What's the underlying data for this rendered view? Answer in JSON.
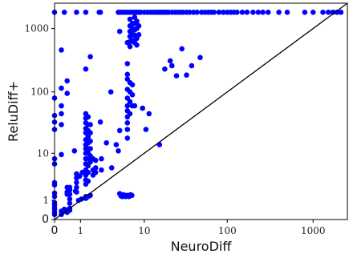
{
  "chart_data": {
    "type": "scatter",
    "title": "",
    "xlabel": "NeuroDiff",
    "ylabel": "ReluDiff+",
    "scale": "symlog",
    "xlim": [
      0,
      2500
    ],
    "ylim": [
      0,
      2500
    ],
    "x_ticks": [
      {
        "value": 0,
        "label": "0"
      },
      {
        "value": 1,
        "label": "1"
      },
      {
        "value": 10,
        "label": "10"
      },
      {
        "value": 100,
        "label": "100"
      },
      {
        "value": 1000,
        "label": "1000"
      }
    ],
    "y_ticks": [
      {
        "value": 0,
        "label": "0"
      },
      {
        "value": 1,
        "label": "1"
      },
      {
        "value": 10,
        "label": "10"
      },
      {
        "value": 100,
        "label": "100"
      },
      {
        "value": 1000,
        "label": "1000"
      }
    ],
    "grid": false,
    "reference_line": "y = x",
    "colors": {
      "points": "#0000ff",
      "line": "#000000",
      "axes": "#000000"
    },
    "series": [
      {
        "points": [
          [
            0,
            1800
          ],
          [
            0.3,
            1800
          ],
          [
            0.8,
            1800
          ],
          [
            1.3,
            1800
          ],
          [
            2.3,
            1800
          ],
          [
            2.4,
            1800
          ],
          [
            4.5,
            1800
          ],
          [
            4.8,
            1800
          ],
          [
            5.2,
            1800
          ],
          [
            5.6,
            1800
          ],
          [
            6,
            1800
          ],
          [
            6.5,
            1800
          ],
          [
            7,
            1800
          ],
          [
            7.5,
            1800
          ],
          [
            8,
            1800
          ],
          [
            8.5,
            1800
          ],
          [
            9,
            1800
          ],
          [
            10,
            1800
          ],
          [
            11,
            1800
          ],
          [
            12,
            1800
          ],
          [
            13,
            1800
          ],
          [
            14,
            1800
          ],
          [
            15,
            1800
          ],
          [
            16,
            1800
          ],
          [
            17,
            1800
          ],
          [
            18,
            1800
          ],
          [
            19,
            1800
          ],
          [
            20,
            1800
          ],
          [
            22,
            1800
          ],
          [
            24,
            1800
          ],
          [
            26,
            1800
          ],
          [
            28,
            1800
          ],
          [
            30,
            1800
          ],
          [
            33,
            1800
          ],
          [
            36,
            1800
          ],
          [
            40,
            1800
          ],
          [
            44,
            1800
          ],
          [
            50,
            1800
          ],
          [
            55,
            1800
          ],
          [
            60,
            1800
          ],
          [
            65,
            1800
          ],
          [
            70,
            1800
          ],
          [
            80,
            1800
          ],
          [
            90,
            1800
          ],
          [
            100,
            1800
          ],
          [
            110,
            1800
          ],
          [
            120,
            1800
          ],
          [
            130,
            1800
          ],
          [
            150,
            1800
          ],
          [
            170,
            1800
          ],
          [
            200,
            1800
          ],
          [
            230,
            1800
          ],
          [
            260,
            1800
          ],
          [
            300,
            1800
          ],
          [
            400,
            1800
          ],
          [
            500,
            1800
          ],
          [
            800,
            1800
          ],
          [
            1000,
            1800
          ],
          [
            1300,
            1800
          ],
          [
            1500,
            1800
          ],
          [
            1700,
            1800
          ],
          [
            1900,
            1800
          ],
          [
            2100,
            1800
          ],
          [
            0,
            80
          ],
          [
            0,
            42
          ],
          [
            0,
            33
          ],
          [
            0,
            25
          ],
          [
            0,
            8
          ],
          [
            0,
            6.5
          ],
          [
            0,
            2.8
          ],
          [
            0,
            2.5
          ],
          [
            0,
            1.6
          ],
          [
            0,
            1.3
          ],
          [
            0,
            0.85
          ],
          [
            0,
            0.7
          ],
          [
            0,
            0.55
          ],
          [
            0,
            0.45
          ],
          [
            0,
            0.3
          ],
          [
            0,
            0.2
          ],
          [
            0.2,
            460
          ],
          [
            0.2,
            115
          ],
          [
            0.2,
            60
          ],
          [
            0.2,
            45
          ],
          [
            0.2,
            30
          ],
          [
            0.2,
            9.5
          ],
          [
            0.2,
            0.35
          ],
          [
            0.2,
            0.2
          ],
          [
            0.3,
            0.45
          ],
          [
            0.3,
            0.35
          ],
          [
            0.4,
            150
          ],
          [
            0.4,
            95
          ],
          [
            0.4,
            2.2
          ],
          [
            0.4,
            1.7
          ],
          [
            0.4,
            1.5
          ],
          [
            0.4,
            0.4
          ],
          [
            0.4,
            0.3
          ],
          [
            0.5,
            2.2
          ],
          [
            0.5,
            1.9
          ],
          [
            0.5,
            1.5
          ],
          [
            0.5,
            1.1
          ],
          [
            0.5,
            0.8
          ],
          [
            0.5,
            0.5
          ],
          [
            0.5,
            0.4
          ],
          [
            0.75,
            1.8
          ],
          [
            0.7,
            11
          ],
          [
            0.8,
            4.2
          ],
          [
            0.8,
            3.5
          ],
          [
            0.8,
            2.8
          ],
          [
            0.8,
            2.2
          ],
          [
            0.8,
            1.7
          ],
          [
            0.9,
            1.0
          ],
          [
            0.95,
            3.8
          ],
          [
            1.05,
            1.1
          ],
          [
            1.1,
            4.5
          ],
          [
            1.3,
            230
          ],
          [
            1.3,
            45
          ],
          [
            1.3,
            38
          ],
          [
            1.3,
            32
          ],
          [
            1.3,
            26
          ],
          [
            1.3,
            22
          ],
          [
            1.3,
            17
          ],
          [
            1.3,
            14
          ],
          [
            1.3,
            12
          ],
          [
            1.3,
            10
          ],
          [
            1.3,
            8
          ],
          [
            1.3,
            6.5
          ],
          [
            1.3,
            5
          ],
          [
            1.3,
            4
          ],
          [
            1.3,
            3.2
          ],
          [
            1.3,
            2.6
          ],
          [
            1.3,
            1.3
          ],
          [
            1.3,
            1.15
          ],
          [
            1.45,
            40
          ],
          [
            1.45,
            30
          ],
          [
            1.45,
            24
          ],
          [
            1.45,
            19
          ],
          [
            1.45,
            15
          ],
          [
            1.45,
            12
          ],
          [
            1.45,
            10
          ],
          [
            1.45,
            8
          ],
          [
            1.45,
            6
          ],
          [
            1.45,
            4.5
          ],
          [
            1.45,
            3
          ],
          [
            1.45,
            1.3
          ],
          [
            1.6,
            360
          ],
          [
            1.6,
            30
          ],
          [
            1.6,
            22
          ],
          [
            1.6,
            16
          ],
          [
            1.6,
            12
          ],
          [
            1.6,
            9
          ],
          [
            1.6,
            7
          ],
          [
            1.6,
            1.4
          ],
          [
            1.8,
            8
          ],
          [
            1.8,
            5
          ],
          [
            1.8,
            4
          ],
          [
            2.0,
            7.5
          ],
          [
            2.0,
            5.5
          ],
          [
            2.0,
            4.5
          ],
          [
            2.4,
            33
          ],
          [
            2.5,
            8
          ],
          [
            2.5,
            5
          ],
          [
            3,
            15
          ],
          [
            3.5,
            100
          ],
          [
            3.6,
            5.5
          ],
          [
            4.2,
            14
          ],
          [
            4.5,
            11
          ],
          [
            4.7,
            900
          ],
          [
            4.7,
            24
          ],
          [
            4.7,
            1.55
          ],
          [
            4.9,
            1.35
          ],
          [
            5.1,
            1.3
          ],
          [
            5.3,
            1.45
          ],
          [
            5.5,
            1.35
          ],
          [
            5.7,
            1.3
          ],
          [
            5.9,
            1.4
          ],
          [
            6.1,
            1.35
          ],
          [
            6.3,
            1.3
          ],
          [
            6.6,
            1.45
          ],
          [
            6.9,
            1.4
          ],
          [
            6.0,
            600
          ],
          [
            6.0,
            280
          ],
          [
            6.0,
            190
          ],
          [
            6.0,
            160
          ],
          [
            6.0,
            110
          ],
          [
            6.0,
            80
          ],
          [
            6.0,
            60
          ],
          [
            6.0,
            50
          ],
          [
            6.0,
            40
          ],
          [
            6.0,
            32
          ],
          [
            6.0,
            25
          ],
          [
            6.0,
            18
          ],
          [
            6.5,
            1400
          ],
          [
            6.5,
            1100
          ],
          [
            6.5,
            900
          ],
          [
            6.5,
            750
          ],
          [
            6.5,
            620
          ],
          [
            6.5,
            520
          ],
          [
            6.5,
            140
          ],
          [
            6.5,
            100
          ],
          [
            6.5,
            70
          ],
          [
            6.5,
            45
          ],
          [
            7.0,
            1200
          ],
          [
            7.0,
            1000
          ],
          [
            7.0,
            800
          ],
          [
            7.0,
            650
          ],
          [
            7.0,
            130
          ],
          [
            7.0,
            90
          ],
          [
            7.0,
            60
          ],
          [
            7.5,
            1500
          ],
          [
            7.5,
            1200
          ],
          [
            7.5,
            950
          ],
          [
            7.5,
            780
          ],
          [
            7.5,
            600
          ],
          [
            7.5,
            60
          ],
          [
            8.0,
            1300
          ],
          [
            8.0,
            1000
          ],
          [
            8.0,
            700
          ],
          [
            8.0,
            550
          ],
          [
            8.5,
            1100
          ],
          [
            8.5,
            800
          ],
          [
            9.5,
            55
          ],
          [
            10.5,
            25
          ],
          [
            11.5,
            45
          ],
          [
            15.5,
            14
          ],
          [
            18,
            230
          ],
          [
            21,
            310
          ],
          [
            22,
            260
          ],
          [
            25,
            180
          ],
          [
            29,
            480
          ],
          [
            33,
            185
          ],
          [
            38,
            260
          ],
          [
            48,
            350
          ]
        ]
      }
    ]
  }
}
